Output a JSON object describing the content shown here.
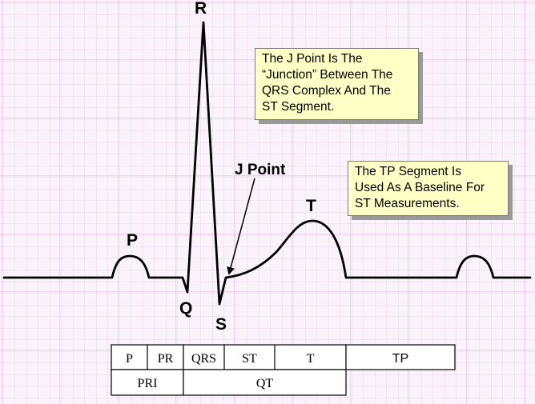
{
  "colors": {
    "background": "#fbf3fb",
    "grid_minor": "#ebd4eb",
    "grid_major": "#dcbcdc",
    "waveform": "#000000",
    "note_background": "#ffffc6"
  },
  "wave_labels": {
    "p": "P",
    "q": "Q",
    "r": "R",
    "s": "S",
    "t": "T",
    "j_point": "J Point"
  },
  "notes": {
    "j_point": "The J Point Is The\n“Junction” Between The\nQRS Complex And The\nST Segment.",
    "tp_segment": "The TP Segment Is\nUsed As A Baseline For\nST Measurements."
  },
  "intervals": {
    "top_row": [
      "P",
      "PR",
      "QRS",
      "ST",
      "T",
      "TP"
    ],
    "bottom_row": [
      "PRI",
      "QT"
    ]
  }
}
